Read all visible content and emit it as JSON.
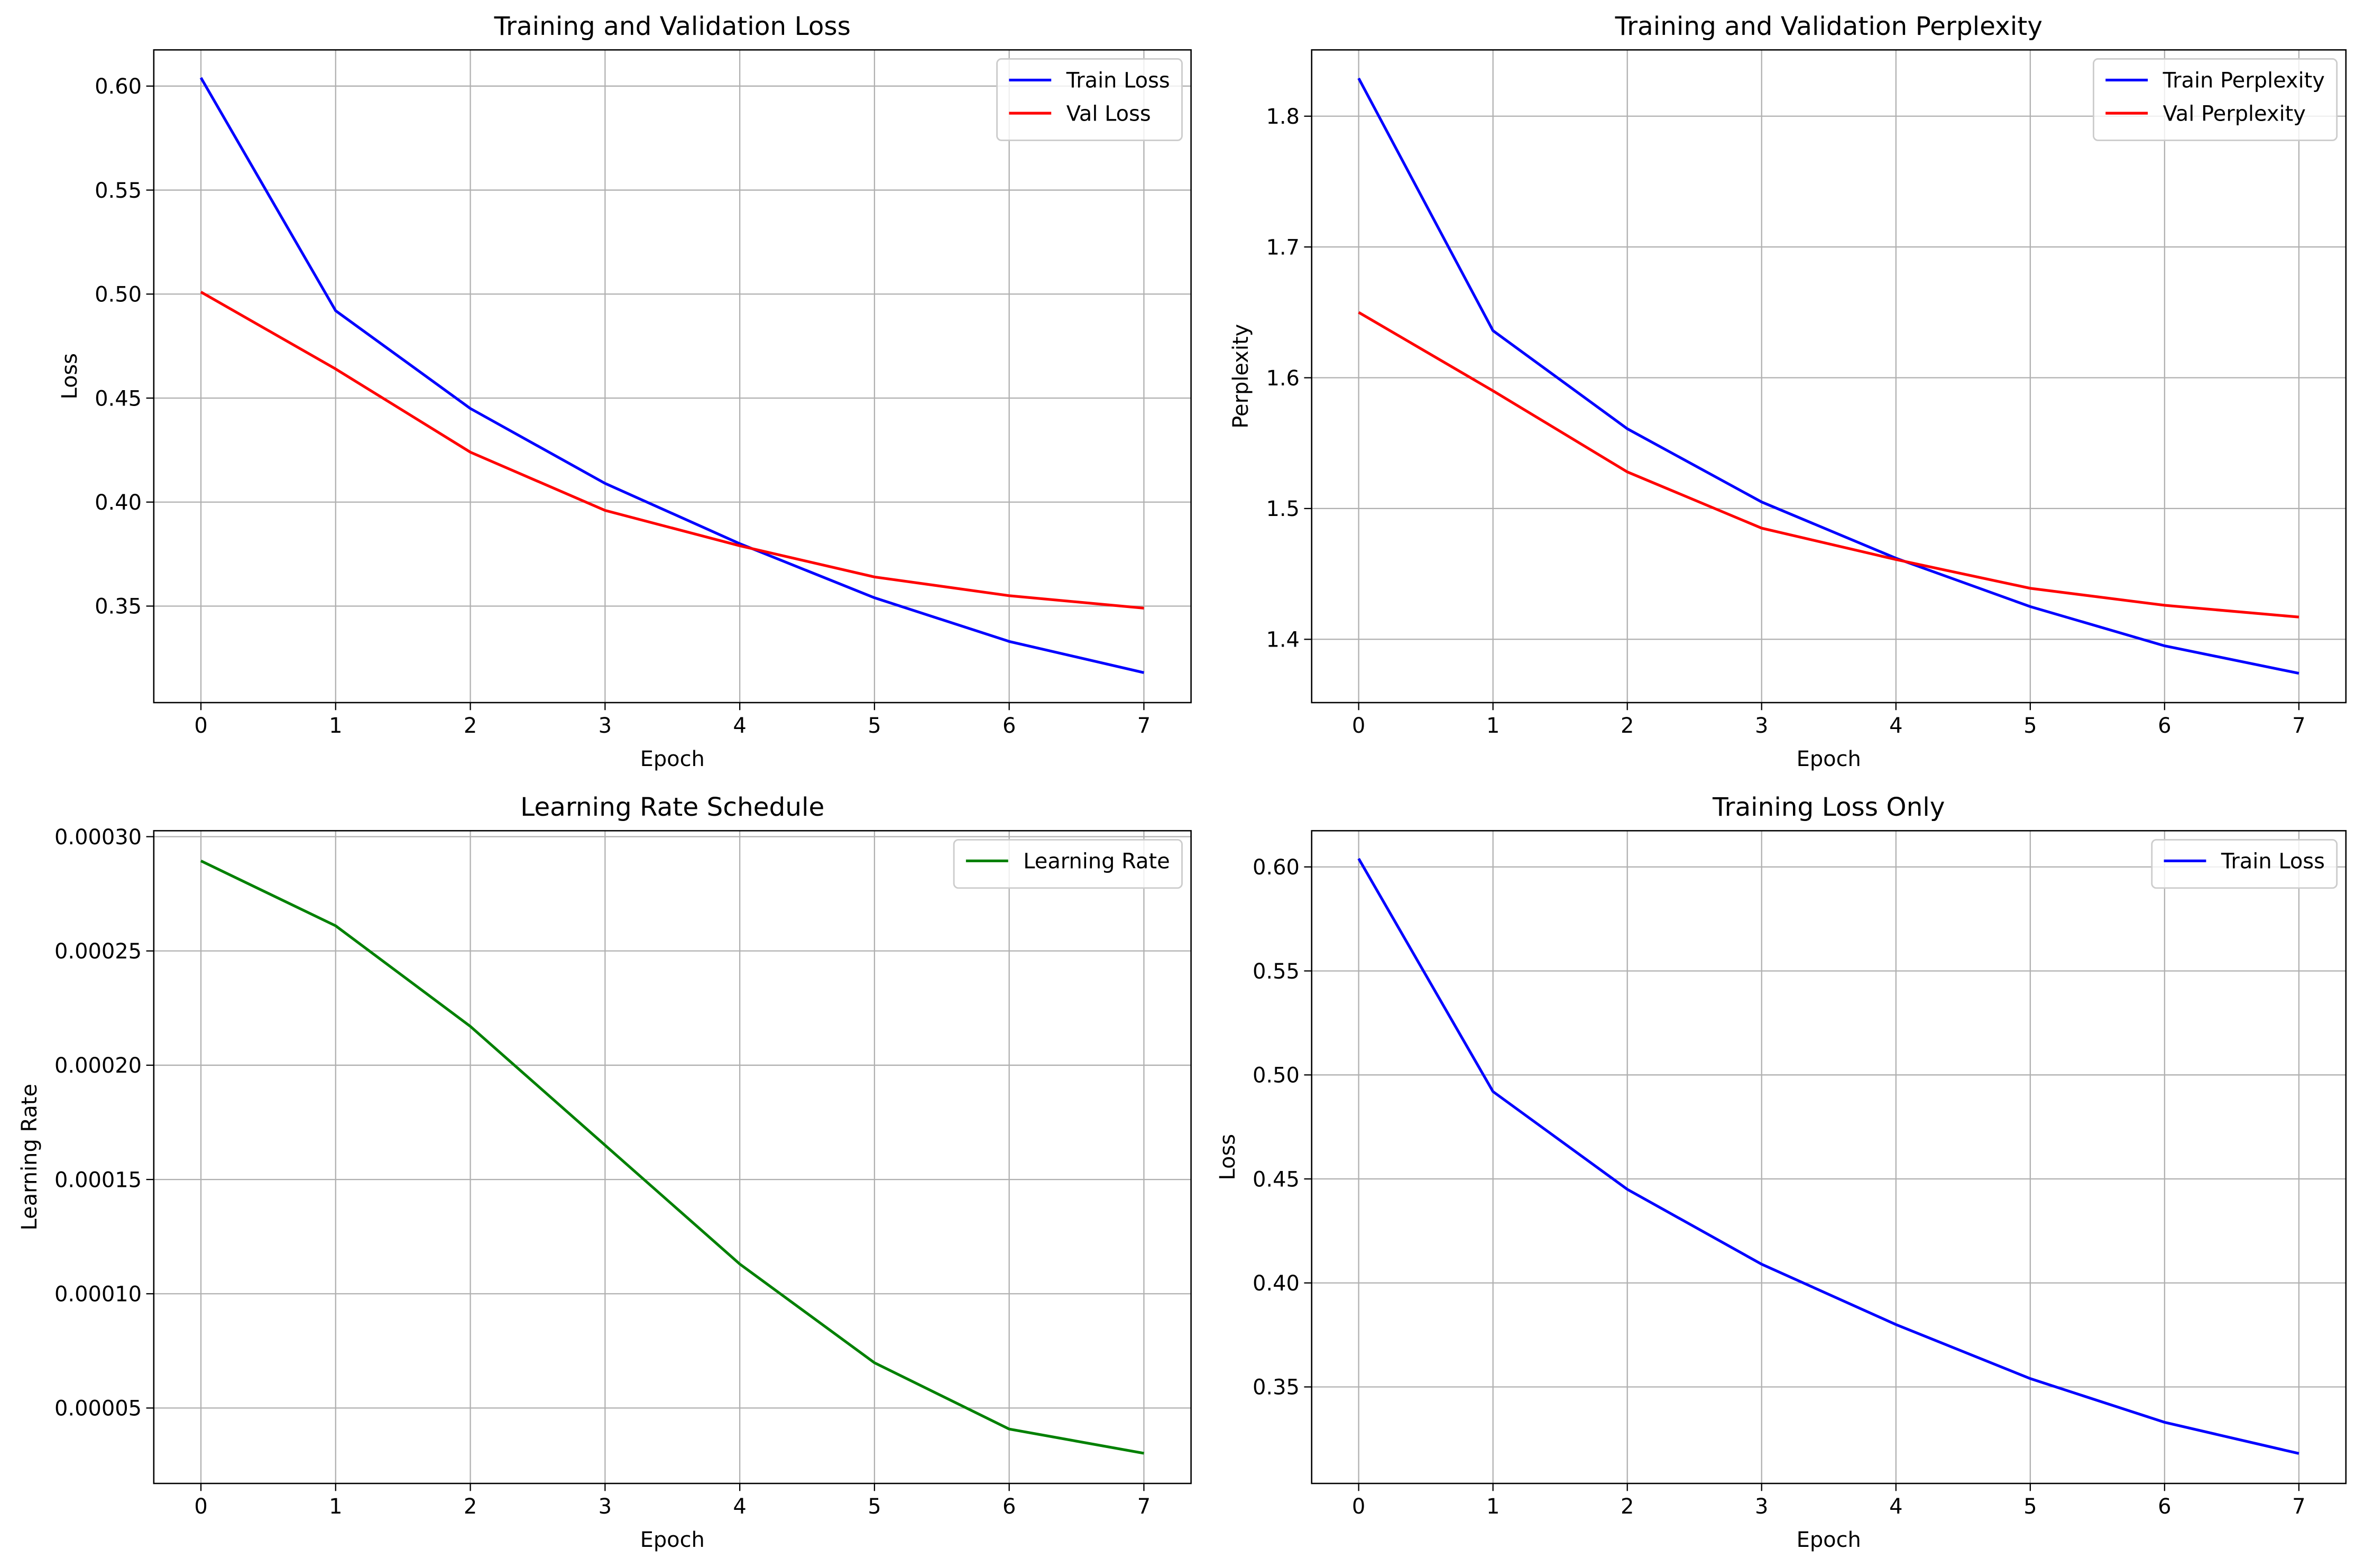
{
  "chart_data": [
    {
      "type": "line",
      "title": "Training and Validation Loss",
      "xlabel": "Epoch",
      "ylabel": "Loss",
      "x": [
        0,
        1,
        2,
        3,
        4,
        5,
        6,
        7
      ],
      "series": [
        {
          "name": "Train Loss",
          "color": "#0000ff",
          "values": [
            0.604,
            0.492,
            0.445,
            0.409,
            0.38,
            0.354,
            0.333,
            0.318
          ]
        },
        {
          "name": "Val Loss",
          "color": "#ff0000",
          "values": [
            0.501,
            0.464,
            0.424,
            0.396,
            0.379,
            0.364,
            0.355,
            0.349
          ]
        }
      ],
      "xlim": [
        -0.35,
        7.35
      ],
      "xticks": [
        0,
        1,
        2,
        3,
        4,
        5,
        6,
        7
      ],
      "ylim": [
        0.3036,
        0.6174
      ],
      "yticks": [
        0.35,
        {
          "value": 0.4,
          "label": "0.40"
        },
        0.45,
        {
          "value": 0.5,
          "label": "0.50"
        },
        0.55,
        {
          "value": 0.6,
          "label": "0.60"
        }
      ],
      "grid": true,
      "legend": "upper-right"
    },
    {
      "type": "line",
      "title": "Training and Validation Perplexity",
      "xlabel": "Epoch",
      "ylabel": "Perplexity",
      "x": [
        0,
        1,
        2,
        3,
        4,
        5,
        6,
        7
      ],
      "series": [
        {
          "name": "Train Perplexity",
          "color": "#0000ff",
          "values": [
            1.829,
            1.636,
            1.561,
            1.505,
            1.462,
            1.425,
            1.395,
            1.374
          ]
        },
        {
          "name": "Val Perplexity",
          "color": "#ff0000",
          "values": [
            1.65,
            1.59,
            1.528,
            1.485,
            1.461,
            1.439,
            1.426,
            1.417
          ]
        }
      ],
      "xlim": [
        -0.35,
        7.35
      ],
      "xticks": [
        0,
        1,
        2,
        3,
        4,
        5,
        6,
        7
      ],
      "ylim": [
        1.3516,
        1.8507
      ],
      "yticks": [
        1.4,
        1.5,
        1.6,
        1.7,
        1.8
      ],
      "grid": true,
      "legend": "upper-right"
    },
    {
      "type": "line",
      "title": "Learning Rate Schedule",
      "xlabel": "Epoch",
      "ylabel": "Learning Rate",
      "x": [
        0,
        1,
        2,
        3,
        4,
        5,
        6,
        7
      ],
      "series": [
        {
          "name": "Learning Rate",
          "color": "#008000",
          "values": [
            0.0002894,
            0.000261,
            0.000217,
            0.000165,
            0.000113,
            6.98e-05,
            4.08e-05,
            3.02e-05
          ]
        }
      ],
      "xlim": [
        -0.35,
        7.35
      ],
      "xticks": [
        0,
        1,
        2,
        3,
        4,
        5,
        6,
        7
      ],
      "ylim": [
        1.7e-05,
        0.0003026
      ],
      "yticks": [
        {
          "value": 5e-05,
          "label": "0.00005"
        },
        {
          "value": 0.0001,
          "label": "0.00010"
        },
        {
          "value": 0.00015,
          "label": "0.00015"
        },
        {
          "value": 0.0002,
          "label": "0.00020"
        },
        {
          "value": 0.00025,
          "label": "0.00025"
        },
        {
          "value": 0.0003,
          "label": "0.00030"
        }
      ],
      "grid": true,
      "legend": "upper-right"
    },
    {
      "type": "line",
      "title": "Training Loss Only",
      "xlabel": "Epoch",
      "ylabel": "Loss",
      "x": [
        0,
        1,
        2,
        3,
        4,
        5,
        6,
        7
      ],
      "series": [
        {
          "name": "Train Loss",
          "color": "#0000ff",
          "values": [
            0.604,
            0.492,
            0.445,
            0.409,
            0.38,
            0.354,
            0.333,
            0.318
          ]
        }
      ],
      "xlim": [
        -0.35,
        7.35
      ],
      "xticks": [
        0,
        1,
        2,
        3,
        4,
        5,
        6,
        7
      ],
      "ylim": [
        0.3036,
        0.6174
      ],
      "yticks": [
        0.35,
        {
          "value": 0.4,
          "label": "0.40"
        },
        0.45,
        {
          "value": 0.5,
          "label": "0.50"
        },
        0.55,
        {
          "value": 0.6,
          "label": "0.60"
        }
      ],
      "grid": true,
      "legend": "upper-right"
    }
  ]
}
